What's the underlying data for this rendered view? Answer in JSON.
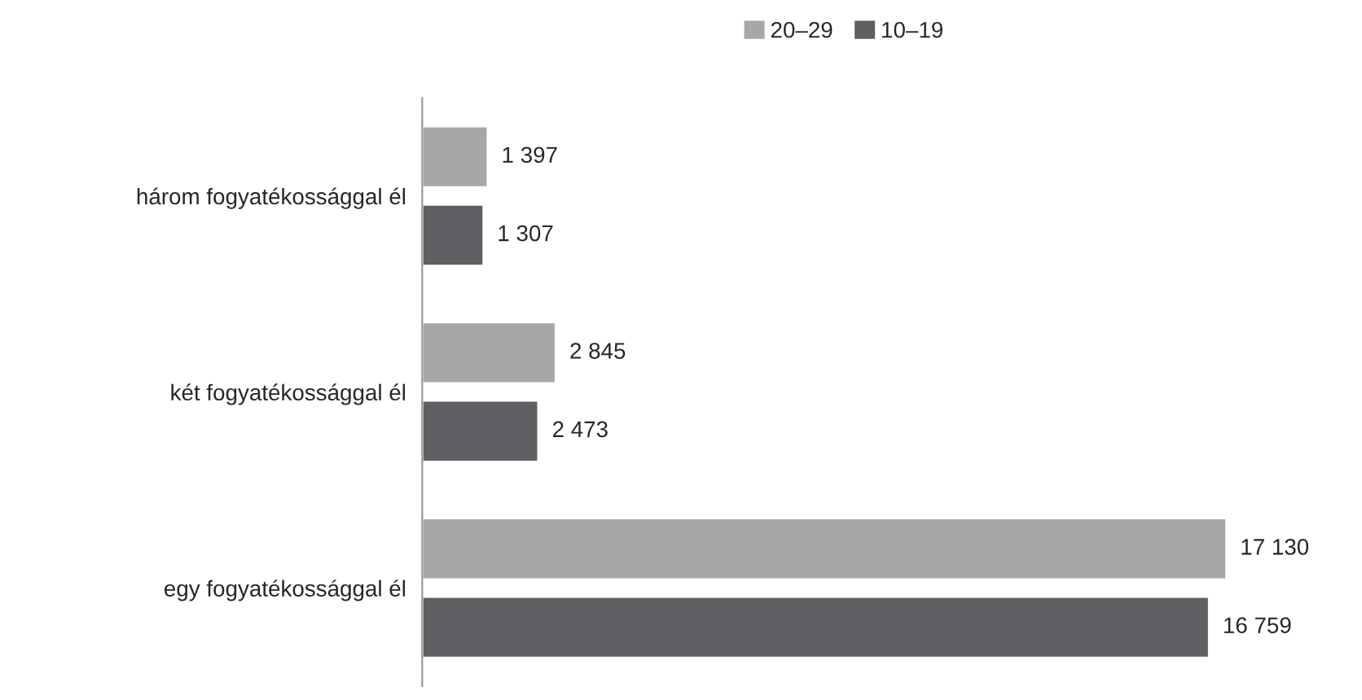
{
  "chart_data": {
    "type": "bar",
    "orientation": "horizontal",
    "categories": [
      "három fogyatékossággal él",
      "két fogyatékossággal él",
      "egy fogyatékossággal él"
    ],
    "series": [
      {
        "name": "20–29",
        "color": "#a6a7a9",
        "values": [
          1397,
          2845,
          17130
        ],
        "value_labels": [
          "1 397",
          "2 845",
          "17 130"
        ]
      },
      {
        "name": "10–19",
        "color": "#5f6063",
        "values": [
          1307,
          2473,
          16759
        ],
        "value_labels": [
          "1 307",
          "2 473",
          "16 759"
        ]
      }
    ],
    "legend": "top",
    "grid": false,
    "tick_labels": "y"
  }
}
